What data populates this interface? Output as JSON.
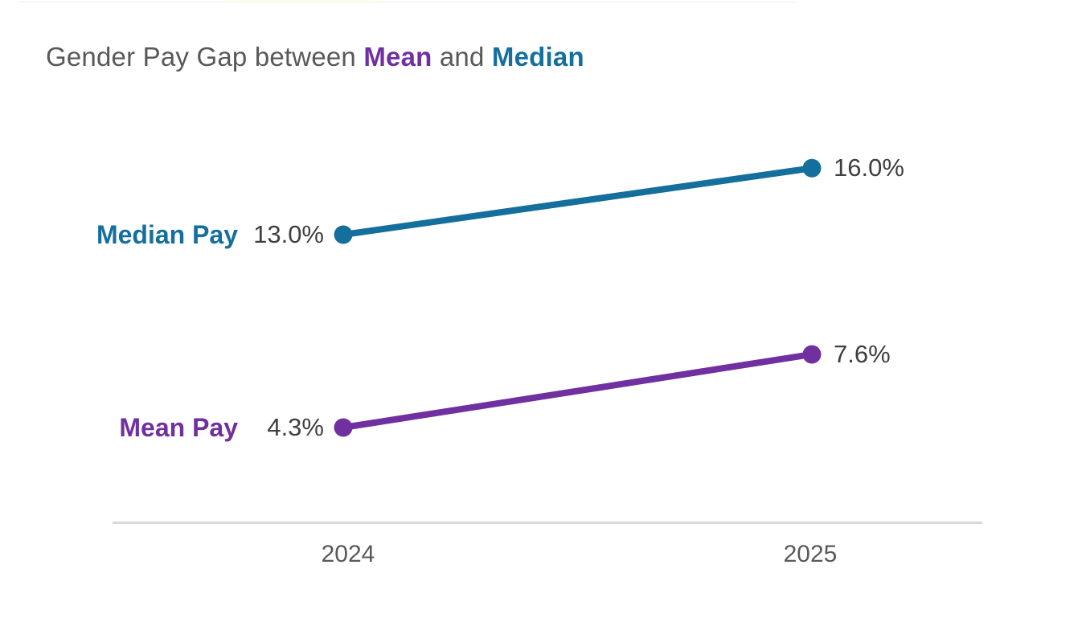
{
  "title": {
    "prefix": "Gender Pay Gap between ",
    "mean_word": "Mean",
    "connector": " and ",
    "median_word": "Median"
  },
  "colors": {
    "mean_purple": "#7030A0",
    "median_teal": "#156F9C",
    "title_gray": "#595959",
    "value_gray": "#3F3F3F",
    "axis_line_gray": "#D9D9D9"
  },
  "chart_data": {
    "type": "line",
    "title": "Gender Pay Gap between Mean and Median",
    "categories": [
      "2024",
      "2025"
    ],
    "series": [
      {
        "name": "Median Pay",
        "color": "#156F9C",
        "values": [
          13.0,
          16.0
        ],
        "value_labels": [
          "13.0%",
          "16.0%"
        ]
      },
      {
        "name": "Mean Pay",
        "color": "#7030A0",
        "values": [
          4.3,
          7.6
        ],
        "value_labels": [
          "4.3%",
          "7.6%"
        ]
      }
    ],
    "xlabel": "",
    "ylabel": "",
    "grid": false,
    "legend_position": "series-labels-at-line-start",
    "x_axis_ticks": [
      "2024",
      "2025"
    ]
  }
}
